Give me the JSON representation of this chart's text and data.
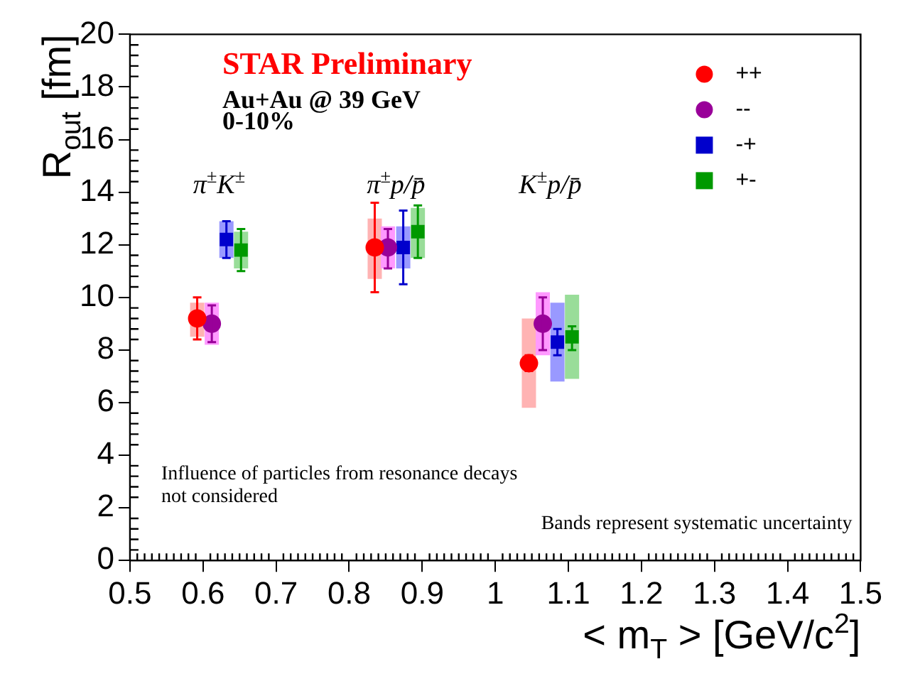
{
  "chart_data": {
    "type": "scatter",
    "title": "STAR Preliminary",
    "subtitle": "Au+Au @ 39 GeV",
    "xlabel": "< m$_{T}$ > [GeV/c$^{2}$]",
    "ylabel": "R$_{out}$ [fm]",
    "annotations": [
      "0-10%",
      "π$^{±}$K$^{±}$",
      "π$^{±}$p/p̄",
      "K$^{±}$p/p̄",
      "Influence of particles from resonance decays not considered",
      "Bands represent systematic uncertainty"
    ],
    "xlim": [
      0.5,
      1.5
    ],
    "xticks": [
      0.5,
      0.6,
      0.7,
      0.8,
      0.9,
      1,
      1.1,
      1.2,
      1.3,
      1.4,
      1.5
    ],
    "ylim": [
      0,
      20
    ],
    "yticks": [
      0,
      2,
      4,
      6,
      8,
      10,
      12,
      14,
      16,
      18,
      20
    ],
    "grid": false,
    "legend": "top right",
    "series": [
      {
        "type": "bar",
        "color": "#ffb3b3",
        "x": [
          0.592,
          0.835,
          1.046
        ],
        "base": [
          8.5,
          10.7,
          5.8
        ],
        "values": [
          1.3,
          2.3,
          3.4
        ]
      },
      {
        "type": "bar",
        "color": "#ff99ff",
        "x": [
          0.612,
          0.853,
          1.065
        ],
        "base": [
          8.2,
          11.1,
          7.8
        ],
        "values": [
          1.6,
          1.6,
          2.4
        ]
      },
      {
        "type": "bar",
        "color": "#9999ff",
        "x": [
          0.632,
          0.874,
          1.085
        ],
        "base": [
          11.5,
          11.1,
          6.8
        ],
        "values": [
          1.4,
          1.6,
          3.0
        ]
      },
      {
        "type": "bar",
        "color": "#99dd99",
        "x": [
          0.652,
          0.894,
          1.105
        ],
        "base": [
          11.1,
          11.5,
          6.9
        ],
        "values": [
          1.4,
          1.9,
          3.2
        ]
      },
      {
        "name": "++",
        "color": "#ff0000",
        "marker": "circle",
        "x": [
          0.592,
          0.835,
          1.046
        ],
        "values": [
          9.2,
          11.9,
          7.5
        ],
        "errors": [
          [
            8.4,
            10.0
          ],
          [
            10.2,
            13.6
          ],
          [
            7.2,
            7.8
          ]
        ]
      },
      {
        "name": "--",
        "color": "#990099",
        "marker": "circle",
        "x": [
          0.612,
          0.853,
          1.065
        ],
        "values": [
          9.0,
          11.9,
          9.0
        ],
        "errors": [
          [
            8.3,
            9.7
          ],
          [
            11.1,
            12.6
          ],
          [
            8.0,
            10.0
          ]
        ]
      },
      {
        "name": "-+",
        "color": "#0000cc",
        "marker": "square",
        "x": [
          0.632,
          0.874,
          1.085
        ],
        "values": [
          12.2,
          11.9,
          8.3
        ],
        "errors": [
          [
            11.5,
            12.9
          ],
          [
            10.5,
            13.3
          ],
          [
            7.8,
            8.8
          ]
        ]
      },
      {
        "name": "+-",
        "color": "#009900",
        "marker": "square",
        "x": [
          0.652,
          0.894,
          1.105
        ],
        "values": [
          11.8,
          12.5,
          8.5
        ],
        "errors": [
          [
            11.0,
            12.6
          ],
          [
            11.5,
            13.5
          ],
          [
            8.0,
            8.9
          ]
        ]
      }
    ]
  }
}
